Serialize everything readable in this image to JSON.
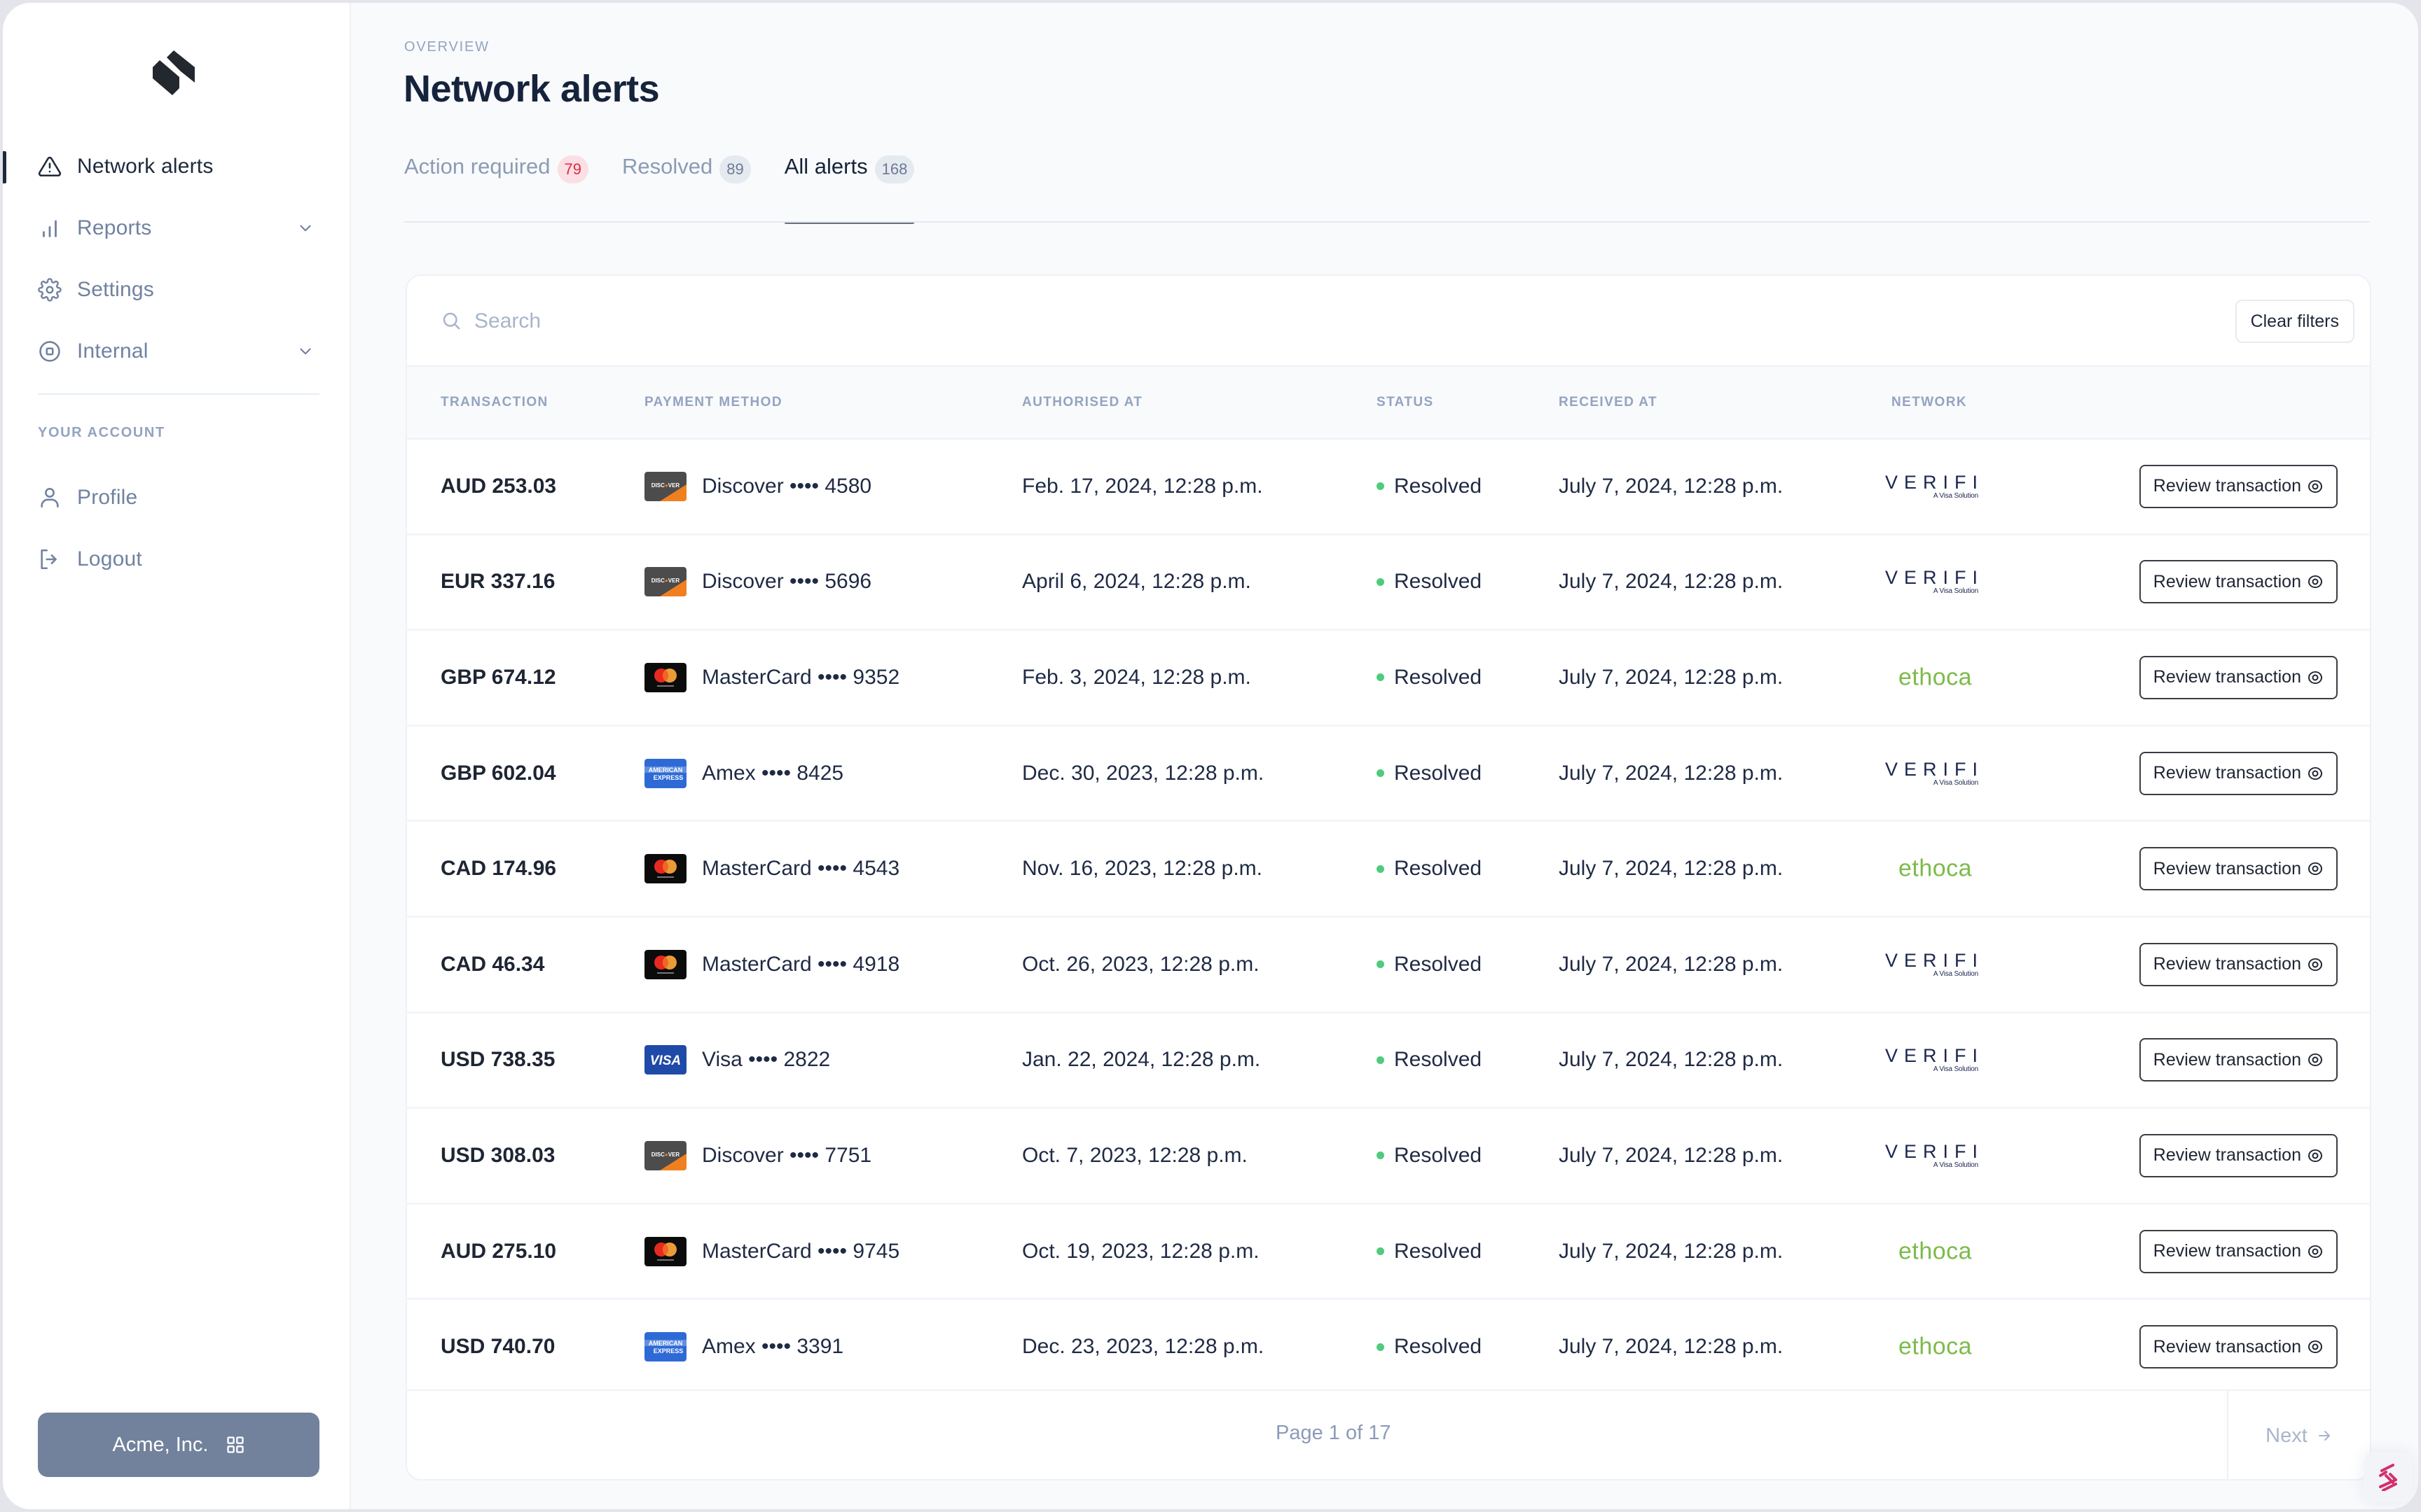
{
  "sidebar": {
    "logo": "brand-logo",
    "nav": [
      {
        "label": "Network alerts",
        "icon": "warning-triangle-icon",
        "active": true
      },
      {
        "label": "Reports",
        "icon": "bar-chart-icon",
        "expandable": true
      },
      {
        "label": "Settings",
        "icon": "gear-icon"
      },
      {
        "label": "Internal",
        "icon": "internal-icon",
        "expandable": true
      }
    ],
    "section_label": "YOUR ACCOUNT",
    "account_nav": [
      {
        "label": "Profile",
        "icon": "user-icon"
      },
      {
        "label": "Logout",
        "icon": "logout-icon"
      }
    ],
    "org_button": {
      "label": "Acme, Inc.",
      "icon": "grid-icon"
    }
  },
  "header": {
    "breadcrumb": "OVERVIEW",
    "title": "Network alerts"
  },
  "tabs": [
    {
      "label": "Action required",
      "count": "79",
      "badge_color": "#dc2b45",
      "active": false
    },
    {
      "label": "Resolved",
      "count": "89",
      "active": false
    },
    {
      "label": "All alerts",
      "count": "168",
      "active": true
    }
  ],
  "search": {
    "placeholder": "Search",
    "value": ""
  },
  "clear_filters_label": "Clear filters",
  "table": {
    "columns": [
      "TRANSACTION",
      "PAYMENT METHOD",
      "AUTHORISED AT",
      "STATUS",
      "RECEIVED AT",
      "NETWORK"
    ],
    "action_label": "Review transaction",
    "rows": [
      {
        "amount": "AUD 253.03",
        "card_brand": "discover",
        "payment": "Discover •••• 4580",
        "authorised_at": "Feb. 17, 2024, 12:28 p.m.",
        "status": "Resolved",
        "received_at": "July 7, 2024, 12:28 p.m.",
        "network": "verifi"
      },
      {
        "amount": "EUR 337.16",
        "card_brand": "discover",
        "payment": "Discover •••• 5696",
        "authorised_at": "April 6, 2024, 12:28 p.m.",
        "status": "Resolved",
        "received_at": "July 7, 2024, 12:28 p.m.",
        "network": "verifi"
      },
      {
        "amount": "GBP 674.12",
        "card_brand": "mastercard",
        "payment": "MasterCard •••• 9352",
        "authorised_at": "Feb. 3, 2024, 12:28 p.m.",
        "status": "Resolved",
        "received_at": "July 7, 2024, 12:28 p.m.",
        "network": "ethoca"
      },
      {
        "amount": "GBP 602.04",
        "card_brand": "amex",
        "payment": "Amex •••• 8425",
        "authorised_at": "Dec. 30, 2023, 12:28 p.m.",
        "status": "Resolved",
        "received_at": "July 7, 2024, 12:28 p.m.",
        "network": "verifi"
      },
      {
        "amount": "CAD 174.96",
        "card_brand": "mastercard",
        "payment": "MasterCard •••• 4543",
        "authorised_at": "Nov. 16, 2023, 12:28 p.m.",
        "status": "Resolved",
        "received_at": "July 7, 2024, 12:28 p.m.",
        "network": "ethoca"
      },
      {
        "amount": "CAD 46.34",
        "card_brand": "mastercard",
        "payment": "MasterCard •••• 4918",
        "authorised_at": "Oct. 26, 2023, 12:28 p.m.",
        "status": "Resolved",
        "received_at": "July 7, 2024, 12:28 p.m.",
        "network": "verifi"
      },
      {
        "amount": "USD 738.35",
        "card_brand": "visa",
        "payment": "Visa •••• 2822",
        "authorised_at": "Jan. 22, 2024, 12:28 p.m.",
        "status": "Resolved",
        "received_at": "July 7, 2024, 12:28 p.m.",
        "network": "verifi"
      },
      {
        "amount": "USD 308.03",
        "card_brand": "discover",
        "payment": "Discover •••• 7751",
        "authorised_at": "Oct. 7, 2023, 12:28 p.m.",
        "status": "Resolved",
        "received_at": "July 7, 2024, 12:28 p.m.",
        "network": "verifi"
      },
      {
        "amount": "AUD 275.10",
        "card_brand": "mastercard",
        "payment": "MasterCard •••• 9745",
        "authorised_at": "Oct. 19, 2023, 12:28 p.m.",
        "status": "Resolved",
        "received_at": "July 7, 2024, 12:28 p.m.",
        "network": "ethoca"
      },
      {
        "amount": "USD 740.70",
        "card_brand": "amex",
        "payment": "Amex •••• 3391",
        "authorised_at": "Dec. 23, 2023, 12:28 p.m.",
        "status": "Resolved",
        "received_at": "July 7, 2024, 12:28 p.m.",
        "network": "ethoca"
      }
    ]
  },
  "networks": {
    "verifi": {
      "name": "VERIFI",
      "tagline": "A Visa Solution"
    },
    "ethoca": {
      "name": "ethoca"
    }
  },
  "pagination": {
    "info": "Page 1 of 17",
    "next_label": "Next"
  },
  "colors": {
    "accent_dark": "#15233b",
    "muted": "#7182a0",
    "status_resolved": "#4ecb7d",
    "badge_red": "#dc2b45",
    "org_button": "#72819c",
    "ethoca_green": "#7dbb4a",
    "verifi_navy": "#1b2650",
    "help_widget": "#d1306f"
  }
}
